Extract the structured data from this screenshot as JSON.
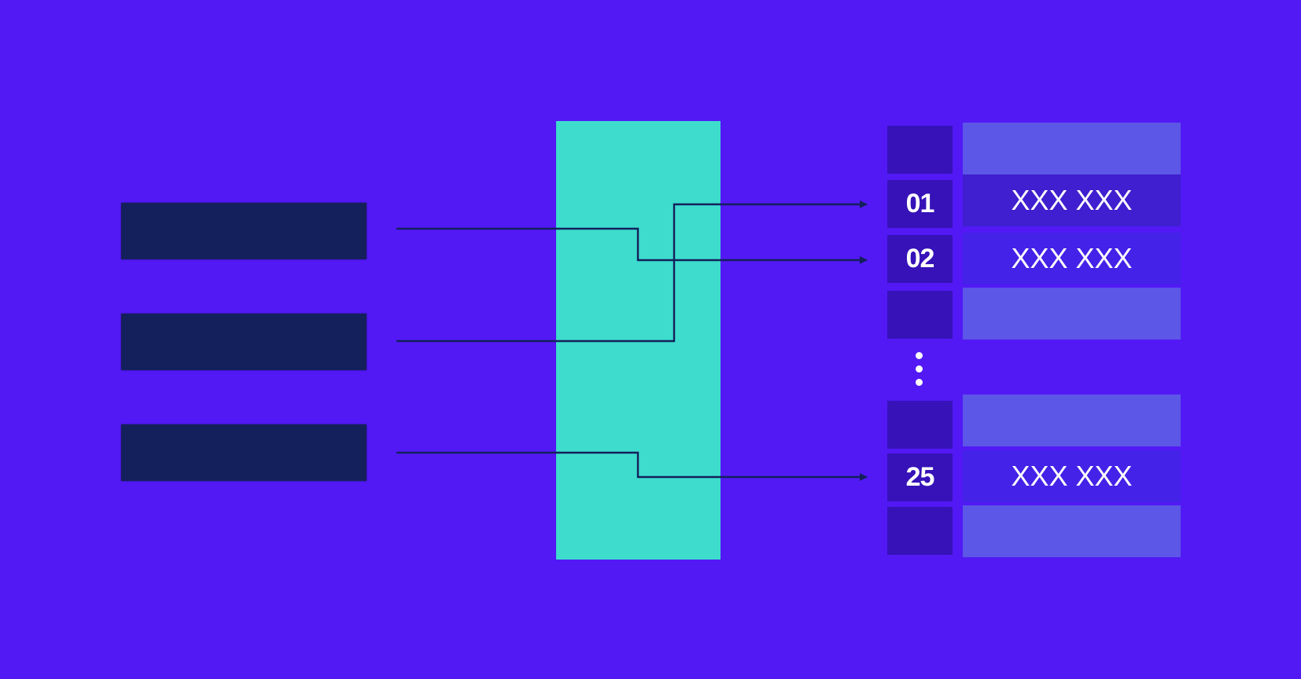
{
  "diagram": {
    "keys": [
      {
        "label": ""
      },
      {
        "label": ""
      },
      {
        "label": ""
      }
    ],
    "hash_function": {
      "label": ""
    },
    "buckets": [
      {
        "index": "",
        "value": ""
      },
      {
        "index": "01",
        "value": "XXX XXX"
      },
      {
        "index": "02",
        "value": "XXX XXX"
      },
      {
        "index": "",
        "value": ""
      },
      {
        "index": "",
        "value": ""
      },
      {
        "index": "25",
        "value": "XXX XXX"
      },
      {
        "index": "",
        "value": ""
      }
    ],
    "colors": {
      "background": "#5219f5",
      "key_block": "#14205c",
      "hash_function": "#3ddccd",
      "index_cell": "#3612b8",
      "value_empty": "#5c57e6",
      "value_filled": "#4422e8",
      "arrow": "#14205c",
      "text": "#ffffff"
    }
  }
}
